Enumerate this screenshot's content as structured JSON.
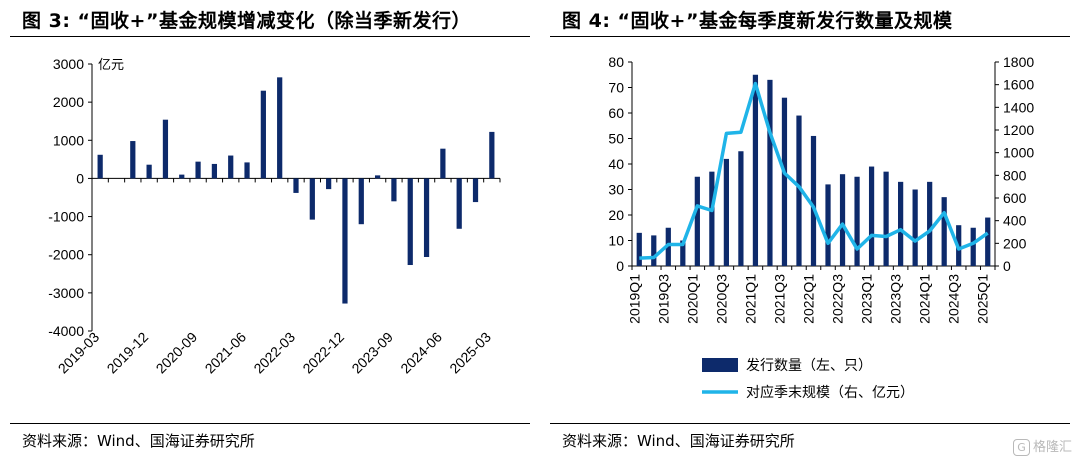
{
  "figures": [
    {
      "title": "图 3:   “固收+”基金规模增减变化（除当季新发行）",
      "source": "资料来源：Wind、国海证券研究所"
    },
    {
      "title": "图 4:   “固收+”基金每季度新发行数量及规模",
      "source": "资料来源：Wind、国海证券研究所"
    }
  ],
  "watermark": "格隆汇",
  "watermark_icon": "G",
  "chart_data": [
    {
      "type": "bar",
      "title": "",
      "unit_label": "亿元",
      "xlabel": "",
      "ylabel": "",
      "ylim": [
        -4000,
        3000
      ],
      "yticks": [
        -4000,
        -3000,
        -2000,
        -1000,
        0,
        1000,
        2000,
        3000
      ],
      "categories": [
        "2019-03",
        "2019-06",
        "2019-09",
        "2019-12",
        "2020-03",
        "2020-06",
        "2020-09",
        "2020-12",
        "2021-03",
        "2021-06",
        "2021-09",
        "2021-12",
        "2022-03",
        "2022-06",
        "2022-09",
        "2022-12",
        "2023-03",
        "2023-06",
        "2023-09",
        "2023-12",
        "2024-03",
        "2024-06",
        "2024-09",
        "2024-12",
        "2025-03"
      ],
      "tick_labels": [
        "2019-03",
        "2019-12",
        "2020-09",
        "2021-06",
        "2022-03",
        "2022-12",
        "2023-09",
        "2024-06",
        "2025-03"
      ],
      "series": [
        {
          "color": "#0d2a6b",
          "values": [
            620,
            0,
            980,
            360,
            1540,
            100,
            440,
            380,
            600,
            420,
            2300,
            2650,
            -380,
            -1080,
            -280,
            -3280,
            -1200,
            80,
            -600,
            -2270,
            -2060,
            780,
            -1320,
            -620,
            1220
          ]
        }
      ],
      "grid": false,
      "legend": "none"
    },
    {
      "type": "bar+line",
      "title": "",
      "xlabel": "",
      "ylabel": "",
      "categories": [
        "2019Q1",
        "2019Q2",
        "2019Q3",
        "2019Q4",
        "2020Q1",
        "2020Q2",
        "2020Q3",
        "2020Q4",
        "2021Q1",
        "2021Q2",
        "2021Q3",
        "2021Q4",
        "2022Q1",
        "2022Q2",
        "2022Q3",
        "2022Q4",
        "2023Q1",
        "2023Q2",
        "2023Q3",
        "2023Q4",
        "2024Q1",
        "2024Q2",
        "2024Q3",
        "2024Q4",
        "2025Q1"
      ],
      "tick_labels": [
        "2019Q1",
        "2019Q3",
        "2020Q1",
        "2020Q3",
        "2021Q1",
        "2021Q3",
        "2022Q1",
        "2022Q3",
        "2023Q1",
        "2023Q3",
        "2024Q1",
        "2024Q3",
        "2025Q1"
      ],
      "ylim_left": [
        0,
        80
      ],
      "yticks_left": [
        0,
        10,
        20,
        30,
        40,
        50,
        60,
        70,
        80
      ],
      "ylim_right": [
        0,
        1800
      ],
      "yticks_right": [
        0,
        200,
        400,
        600,
        800,
        1000,
        1200,
        1400,
        1600,
        1800
      ],
      "series": [
        {
          "name": "发行数量（左、只）",
          "type": "bar",
          "axis": "left",
          "color": "#0d2a6b",
          "values": [
            13,
            12,
            15,
            10,
            35,
            37,
            42,
            45,
            75,
            73,
            66,
            59,
            51,
            32,
            36,
            35,
            39,
            37,
            33,
            30,
            33,
            27,
            16,
            15,
            19
          ]
        },
        {
          "name": "对应季末规模（右、亿元）",
          "type": "line",
          "axis": "right",
          "color": "#1fb4e8",
          "values": [
            70,
            75,
            190,
            190,
            530,
            490,
            1170,
            1180,
            1610,
            1180,
            820,
            700,
            520,
            200,
            370,
            150,
            270,
            260,
            320,
            220,
            310,
            470,
            150,
            200,
            290
          ]
        }
      ],
      "grid": false,
      "legend": "bottom"
    }
  ]
}
